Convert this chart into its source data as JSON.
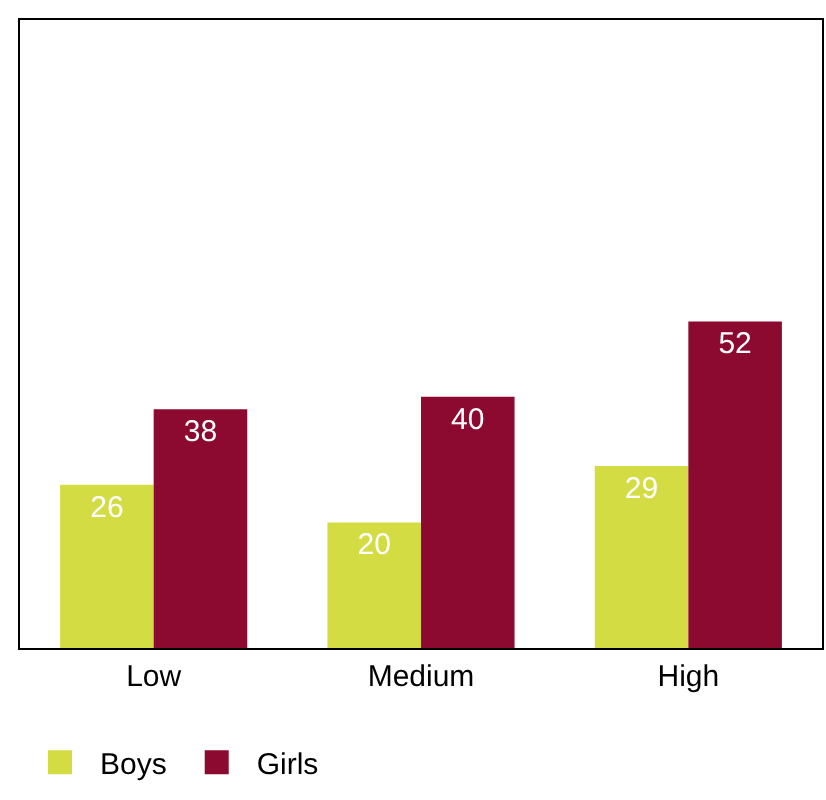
{
  "chart_data": {
    "type": "bar",
    "categories": [
      "Low",
      "Medium",
      "High"
    ],
    "series": [
      {
        "name": "Boys",
        "color": "#d4dc44",
        "values": [
          26,
          20,
          29
        ]
      },
      {
        "name": "Girls",
        "color": "#8c0a2f",
        "values": [
          38,
          40,
          52
        ]
      }
    ],
    "ylim": [
      0,
      100
    ],
    "data_labels": true,
    "legend": "bottom left"
  }
}
